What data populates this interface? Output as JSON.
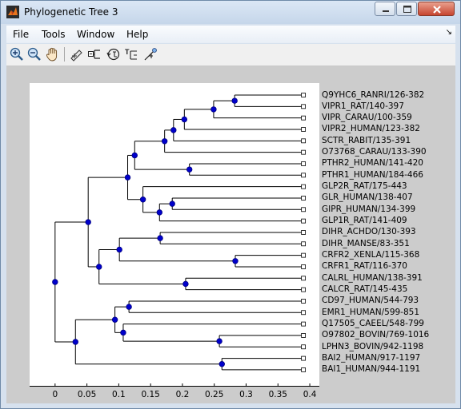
{
  "window": {
    "title": "Phylogenetic Tree 3",
    "colors": {
      "titlebar": "#c5d6ea",
      "figure_bg": "#cccccc",
      "node": "#0000cc",
      "axes_bg": "#ffffff"
    }
  },
  "menubar": {
    "items": [
      {
        "label": "File"
      },
      {
        "label": "Tools"
      },
      {
        "label": "Window"
      },
      {
        "label": "Help"
      }
    ],
    "dock_glyph": "↘"
  },
  "toolbar": {
    "tools": [
      {
        "icon": "zoom-in-icon"
      },
      {
        "icon": "zoom-out-icon"
      },
      {
        "icon": "pan-hand-icon"
      },
      {
        "icon": "prune-icon"
      },
      {
        "icon": "collapse-expand-icon"
      },
      {
        "icon": "rotate-branch-icon"
      },
      {
        "icon": "rename-icon"
      },
      {
        "icon": "find-leaf-icon"
      }
    ]
  },
  "chart_data": {
    "type": "tree",
    "title": "",
    "xlabel": "",
    "ylabel": "",
    "xlim": [
      -0.04,
      0.415
    ],
    "x_ticks": [
      0,
      0.05,
      0.1,
      0.15,
      0.2,
      0.25,
      0.3,
      0.35,
      0.4
    ],
    "tick_labels": [
      "0",
      "0.05",
      "0.1",
      "0.15",
      "0.2",
      "0.25",
      "0.3",
      "0.35",
      "0.4"
    ],
    "leaves": [
      "Q9YHC6_RANRI/126-382",
      "VIPR1_RAT/140-397",
      "VIPR_CARAU/100-359",
      "VIPR2_HUMAN/123-382",
      "SCTR_RABIT/135-391",
      "O73768_CARAU/133-390",
      "PTHR2_HUMAN/141-420",
      "PTHR1_HUMAN/184-466",
      "GLP2R_RAT/175-443",
      "GLR_HUMAN/138-407",
      "GIPR_HUMAN/134-399",
      "GLP1R_RAT/141-409",
      "DIHR_ACHDO/130-393",
      "DIHR_MANSE/83-351",
      "CRFR2_XENLA/115-368",
      "CRFR1_RAT/116-370",
      "CALRL_HUMAN/138-391",
      "CALCR_RAT/145-435",
      "CD97_HUMAN/544-793",
      "EMR1_HUMAN/599-851",
      "Q17505_CAEEL/548-799",
      "O97802_BOVIN/769-1016",
      "LPHN3_BOVIN/942-1198",
      "BAI2_HUMAN/917-1197",
      "BAI1_HUMAN/944-1191"
    ],
    "leaf_x": 0.39,
    "nodes": [
      {
        "id": "n1",
        "x": 0.282,
        "children": [
          0,
          1
        ]
      },
      {
        "id": "n2",
        "x": 0.249,
        "children": [
          "n1",
          2
        ]
      },
      {
        "id": "n3",
        "x": 0.203,
        "children": [
          "n2",
          3
        ]
      },
      {
        "id": "n4",
        "x": 0.186,
        "children": [
          "n3",
          4
        ]
      },
      {
        "id": "n5",
        "x": 0.172,
        "children": [
          "n4",
          5
        ]
      },
      {
        "id": "n6",
        "x": 0.211,
        "children": [
          6,
          7
        ]
      },
      {
        "id": "n7",
        "x": 0.125,
        "children": [
          "n5",
          "n6"
        ]
      },
      {
        "id": "n8",
        "x": 0.184,
        "children": [
          9,
          10
        ]
      },
      {
        "id": "n9",
        "x": 0.164,
        "children": [
          "n8",
          11
        ]
      },
      {
        "id": "n10",
        "x": 0.138,
        "children": [
          8,
          "n9"
        ]
      },
      {
        "id": "n11",
        "x": 0.114,
        "children": [
          "n7",
          "n10"
        ]
      },
      {
        "id": "n12",
        "x": 0.165,
        "children": [
          12,
          13
        ]
      },
      {
        "id": "n13",
        "x": 0.283,
        "children": [
          14,
          15
        ]
      },
      {
        "id": "n14",
        "x": 0.101,
        "children": [
          "n12",
          "n13"
        ]
      },
      {
        "id": "n15",
        "x": 0.205,
        "children": [
          16,
          17
        ]
      },
      {
        "id": "n16",
        "x": 0.069,
        "children": [
          "n14",
          "n15"
        ]
      },
      {
        "id": "n17",
        "x": 0.052,
        "children": [
          "n11",
          "n16"
        ]
      },
      {
        "id": "n18",
        "x": 0.116,
        "children": [
          18,
          19
        ]
      },
      {
        "id": "n19",
        "x": 0.258,
        "children": [
          21,
          22
        ]
      },
      {
        "id": "n20",
        "x": 0.107,
        "children": [
          20,
          "n19"
        ]
      },
      {
        "id": "n21",
        "x": 0.094,
        "children": [
          "n18",
          "n20"
        ]
      },
      {
        "id": "n22",
        "x": 0.262,
        "children": [
          23,
          24
        ]
      },
      {
        "id": "n23",
        "x": 0.032,
        "children": [
          "n21",
          "n22"
        ]
      },
      {
        "id": "root",
        "x": 0.0,
        "children": [
          "n17",
          "n23"
        ]
      }
    ]
  }
}
